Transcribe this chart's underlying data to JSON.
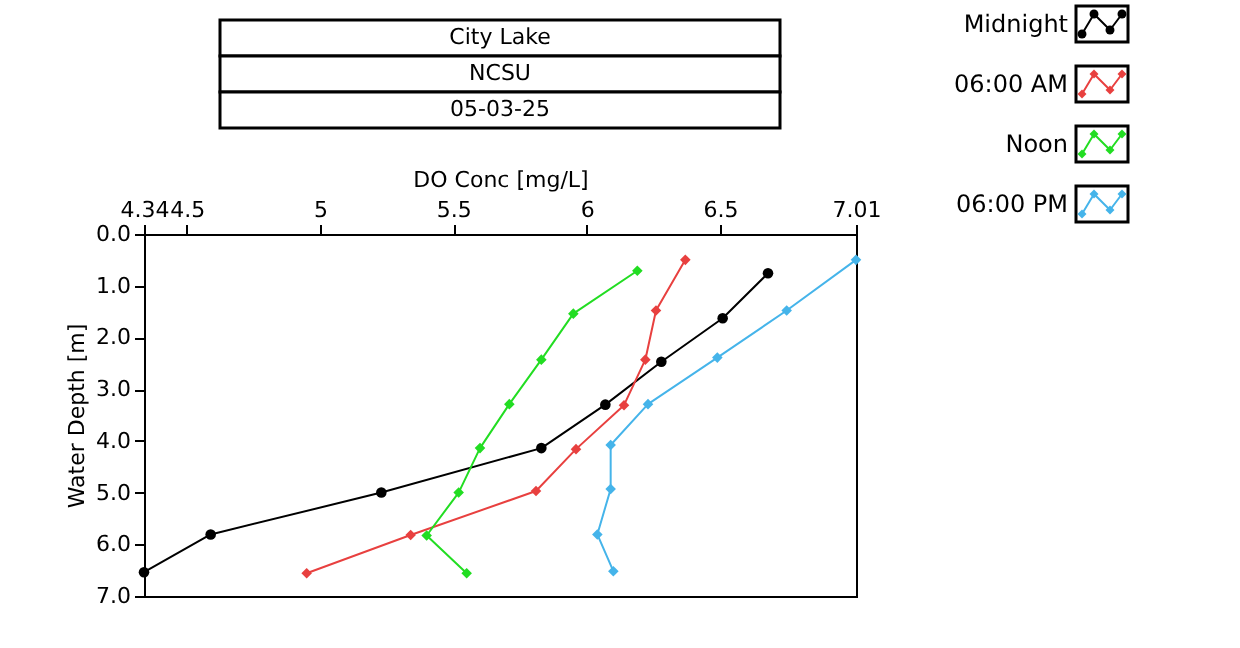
{
  "chart_data": {
    "type": "line",
    "title": "City Lake",
    "subtitle": "NCSU",
    "annotations": [
      "05-03-25"
    ],
    "xlabel": "DO Conc [mg/L]",
    "ylabel": "Water Depth [m]",
    "xlim": [
      4.34,
      7.01
    ],
    "xticks": [
      4.34,
      4.5,
      5,
      5.5,
      6,
      6.5,
      7.01
    ],
    "ylim": [
      7.0,
      0.0
    ],
    "yticks": [
      {
        "value": 0,
        "label": "0.0"
      },
      {
        "value": 1,
        "label": "1.0"
      },
      {
        "value": 2,
        "label": "2.0"
      },
      {
        "value": 3,
        "label": "3.0"
      },
      {
        "value": 4,
        "label": "4.0"
      },
      {
        "value": 5,
        "label": "5.0"
      },
      {
        "value": 6,
        "label": "6.0"
      },
      {
        "value": 7,
        "label": "7.0"
      }
    ],
    "grid": false,
    "legend": "top right",
    "line_style": "solid",
    "series": [
      {
        "name": "Midnight",
        "color": "#000000",
        "marker": "circle",
        "x": [
          6.68,
          6.51,
          6.28,
          6.07,
          5.83,
          5.23,
          4.59,
          4.34
        ],
        "values": [
          0.76,
          1.63,
          2.47,
          3.3,
          4.14,
          5.0,
          5.81,
          6.54
        ]
      },
      {
        "name": "06:00 AM",
        "color": "#e8403f",
        "marker": "diamond",
        "x": [
          6.37,
          6.26,
          6.22,
          6.14,
          5.96,
          5.81,
          5.34,
          4.95
        ],
        "values": [
          0.5,
          1.48,
          2.43,
          3.31,
          4.16,
          4.97,
          5.82,
          6.56
        ]
      },
      {
        "name": "Noon",
        "color": "#22dd22",
        "marker": "diamond",
        "x": [
          6.19,
          5.95,
          5.83,
          5.71,
          5.6,
          5.52,
          5.4,
          5.55
        ],
        "values": [
          0.71,
          1.54,
          2.43,
          3.29,
          4.14,
          5.0,
          5.83,
          6.56
        ]
      },
      {
        "name": "06:00 PM",
        "color": "#45b4ea",
        "marker": "diamond",
        "x": [
          7.01,
          6.75,
          6.49,
          6.23,
          6.09,
          6.09,
          6.04,
          6.1
        ],
        "values": [
          0.5,
          1.48,
          2.39,
          3.29,
          4.08,
          4.93,
          5.81,
          6.52
        ]
      }
    ]
  }
}
